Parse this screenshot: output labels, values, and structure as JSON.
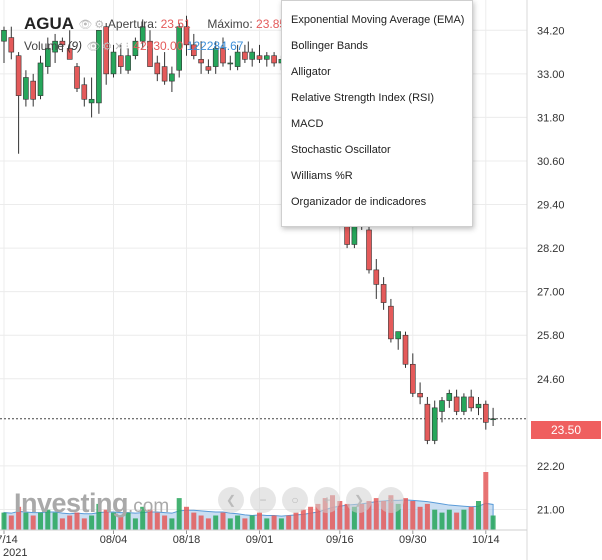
{
  "header": {
    "symbol": "AGUA",
    "open_label": "Apertura:",
    "open_value": "23.51",
    "max_label": "Máximo:",
    "max_value": "23.85",
    "volume_label": "Volume",
    "volume_period": "(9)",
    "volume_value_1": "42930.00",
    "volume_value_2": "122284.67",
    "volume_sep": "|"
  },
  "indicator_menu": {
    "items": [
      "Exponential Moving Average (EMA)",
      "Bollinger Bands",
      "Alligator",
      "Relative Strength Index (RSI)",
      "MACD",
      "Stochastic Oscillator",
      "Williams %R",
      "Organizador de indicadores"
    ]
  },
  "current_price_label": "23.50",
  "logo_text": "Investing",
  "logo_suffix": ".com",
  "colors": {
    "up": "#26a65b",
    "down": "#e45a5a",
    "volume_area": "#9fc3e8",
    "price_tag": "#ef5f5f",
    "grid": "#ececec"
  },
  "chart_data": {
    "type": "candlestick",
    "y_ticks": [
      "34.20",
      "33.00",
      "31.80",
      "30.60",
      "29.40",
      "28.20",
      "27.00",
      "25.80",
      "24.60",
      "22.20",
      "21.00"
    ],
    "ylim": [
      20.6,
      35.2
    ],
    "x_ticks": [
      {
        "label": "07/14",
        "index": 0
      },
      {
        "label": "08/04",
        "index": 15
      },
      {
        "label": "08/18",
        "index": 25
      },
      {
        "label": "09/01",
        "index": 35
      },
      {
        "label": "09/16",
        "index": 46
      },
      {
        "label": "09/30",
        "index": 56
      },
      {
        "label": "10/14",
        "index": 66
      }
    ],
    "x_sublabel": "2021",
    "current_price": 23.5,
    "candles": [
      {
        "o": 33.9,
        "h": 34.3,
        "l": 33.3,
        "c": 34.2
      },
      {
        "o": 34.0,
        "h": 34.3,
        "l": 33.4,
        "c": 33.6
      },
      {
        "o": 33.5,
        "h": 33.6,
        "l": 30.8,
        "c": 32.4
      },
      {
        "o": 32.3,
        "h": 33.1,
        "l": 32.1,
        "c": 32.9
      },
      {
        "o": 32.8,
        "h": 33.0,
        "l": 32.1,
        "c": 32.3
      },
      {
        "o": 32.4,
        "h": 33.5,
        "l": 32.3,
        "c": 33.3
      },
      {
        "o": 33.2,
        "h": 34.0,
        "l": 33.0,
        "c": 33.7
      },
      {
        "o": 33.6,
        "h": 34.1,
        "l": 33.3,
        "c": 33.9
      },
      {
        "o": 33.9,
        "h": 34.0,
        "l": 33.6,
        "c": 33.8
      },
      {
        "o": 33.7,
        "h": 34.2,
        "l": 33.4,
        "c": 33.4
      },
      {
        "o": 33.2,
        "h": 33.3,
        "l": 32.5,
        "c": 32.6
      },
      {
        "o": 32.7,
        "h": 32.9,
        "l": 32.1,
        "c": 32.3
      },
      {
        "o": 32.2,
        "h": 32.9,
        "l": 31.8,
        "c": 32.3
      },
      {
        "o": 32.2,
        "h": 34.2,
        "l": 31.9,
        "c": 34.2
      },
      {
        "o": 34.3,
        "h": 34.4,
        "l": 32.7,
        "c": 33.0
      },
      {
        "o": 33.0,
        "h": 33.8,
        "l": 32.9,
        "c": 33.6
      },
      {
        "o": 33.5,
        "h": 33.8,
        "l": 33.0,
        "c": 33.2
      },
      {
        "o": 33.1,
        "h": 33.7,
        "l": 33.0,
        "c": 33.5
      },
      {
        "o": 33.5,
        "h": 34.0,
        "l": 33.4,
        "c": 33.9
      },
      {
        "o": 33.9,
        "h": 34.5,
        "l": 33.7,
        "c": 34.3
      },
      {
        "o": 33.9,
        "h": 34.2,
        "l": 33.2,
        "c": 33.2
      },
      {
        "o": 33.3,
        "h": 33.5,
        "l": 32.8,
        "c": 33.0
      },
      {
        "o": 33.2,
        "h": 33.6,
        "l": 32.7,
        "c": 32.8
      },
      {
        "o": 32.8,
        "h": 33.2,
        "l": 32.5,
        "c": 33.0
      },
      {
        "o": 33.1,
        "h": 34.4,
        "l": 32.9,
        "c": 34.3
      },
      {
        "o": 34.3,
        "h": 34.6,
        "l": 33.5,
        "c": 33.8
      },
      {
        "o": 33.8,
        "h": 34.1,
        "l": 33.4,
        "c": 33.5
      },
      {
        "o": 33.4,
        "h": 33.9,
        "l": 33.0,
        "c": 33.3
      },
      {
        "o": 33.2,
        "h": 33.4,
        "l": 33.0,
        "c": 33.1
      },
      {
        "o": 33.2,
        "h": 33.9,
        "l": 33.0,
        "c": 33.7
      },
      {
        "o": 33.7,
        "h": 34.0,
        "l": 33.2,
        "c": 33.3
      },
      {
        "o": 33.3,
        "h": 33.5,
        "l": 33.1,
        "c": 33.3
      },
      {
        "o": 33.2,
        "h": 33.8,
        "l": 33.1,
        "c": 33.6
      },
      {
        "o": 33.6,
        "h": 33.8,
        "l": 33.3,
        "c": 33.4
      },
      {
        "o": 33.4,
        "h": 33.7,
        "l": 33.2,
        "c": 33.6
      },
      {
        "o": 33.5,
        "h": 33.8,
        "l": 33.3,
        "c": 33.4
      },
      {
        "o": 33.4,
        "h": 33.6,
        "l": 33.2,
        "c": 33.5
      },
      {
        "o": 33.5,
        "h": 33.6,
        "l": 33.2,
        "c": 33.3
      },
      {
        "o": 33.3,
        "h": 33.5,
        "l": 33.1,
        "c": 33.4
      },
      {
        "o": 33.4,
        "h": 33.6,
        "l": 33.2,
        "c": 33.3
      },
      {
        "o": 33.3,
        "h": 33.5,
        "l": 33.0,
        "c": 33.2
      },
      {
        "o": 33.2,
        "h": 33.4,
        "l": 32.9,
        "c": 33.0
      },
      {
        "o": 33.0,
        "h": 33.2,
        "l": 32.6,
        "c": 32.7
      },
      {
        "o": 32.7,
        "h": 32.9,
        "l": 32.3,
        "c": 32.4
      },
      {
        "o": 32.4,
        "h": 32.6,
        "l": 31.0,
        "c": 31.3
      },
      {
        "o": 31.3,
        "h": 31.5,
        "l": 29.9,
        "c": 30.2
      },
      {
        "o": 29.9,
        "h": 30.1,
        "l": 28.9,
        "c": 29.0
      },
      {
        "o": 29.0,
        "h": 29.4,
        "l": 28.2,
        "c": 28.3
      },
      {
        "o": 28.3,
        "h": 29.2,
        "l": 28.2,
        "c": 29.1
      },
      {
        "o": 29.1,
        "h": 29.4,
        "l": 28.7,
        "c": 28.8
      },
      {
        "o": 28.7,
        "h": 28.9,
        "l": 27.5,
        "c": 27.6
      },
      {
        "o": 27.6,
        "h": 27.9,
        "l": 26.8,
        "c": 27.2
      },
      {
        "o": 27.2,
        "h": 27.4,
        "l": 26.5,
        "c": 26.7
      },
      {
        "o": 26.6,
        "h": 26.8,
        "l": 25.6,
        "c": 25.7
      },
      {
        "o": 25.7,
        "h": 25.9,
        "l": 25.4,
        "c": 25.9
      },
      {
        "o": 25.8,
        "h": 25.9,
        "l": 24.9,
        "c": 25.0
      },
      {
        "o": 25.0,
        "h": 25.3,
        "l": 24.1,
        "c": 24.2
      },
      {
        "o": 24.2,
        "h": 24.5,
        "l": 23.9,
        "c": 24.1
      },
      {
        "o": 23.9,
        "h": 24.1,
        "l": 22.8,
        "c": 22.9
      },
      {
        "o": 22.9,
        "h": 24.0,
        "l": 22.8,
        "c": 23.8
      },
      {
        "o": 23.7,
        "h": 24.1,
        "l": 23.4,
        "c": 24.0
      },
      {
        "o": 24.0,
        "h": 24.3,
        "l": 23.8,
        "c": 24.2
      },
      {
        "o": 24.1,
        "h": 24.3,
        "l": 23.6,
        "c": 23.7
      },
      {
        "o": 23.7,
        "h": 24.2,
        "l": 23.6,
        "c": 24.1
      },
      {
        "o": 24.1,
        "h": 24.3,
        "l": 23.7,
        "c": 23.8
      },
      {
        "o": 23.8,
        "h": 24.1,
        "l": 23.6,
        "c": 23.9
      },
      {
        "o": 23.9,
        "h": 24.0,
        "l": 23.2,
        "c": 23.4
      },
      {
        "o": 23.5,
        "h": 23.8,
        "l": 23.3,
        "c": 23.5
      }
    ],
    "volume": [
      0.3,
      0.25,
      0.4,
      0.3,
      0.25,
      0.3,
      0.35,
      0.3,
      0.2,
      0.25,
      0.3,
      0.2,
      0.25,
      0.45,
      0.35,
      0.3,
      0.25,
      0.3,
      0.2,
      0.4,
      0.35,
      0.3,
      0.25,
      0.2,
      0.55,
      0.4,
      0.3,
      0.25,
      0.2,
      0.25,
      0.3,
      0.2,
      0.25,
      0.2,
      0.25,
      0.3,
      0.2,
      0.25,
      0.2,
      0.25,
      0.3,
      0.35,
      0.4,
      0.45,
      0.55,
      0.6,
      0.5,
      0.45,
      0.4,
      0.45,
      0.5,
      0.55,
      0.5,
      0.6,
      0.45,
      0.55,
      0.5,
      0.4,
      0.45,
      0.35,
      0.3,
      0.35,
      0.3,
      0.35,
      0.4,
      0.5,
      1.0,
      0.25
    ],
    "volume_ma": [
      0.3,
      0.29,
      0.32,
      0.31,
      0.3,
      0.3,
      0.31,
      0.31,
      0.29,
      0.28,
      0.29,
      0.28,
      0.28,
      0.3,
      0.31,
      0.31,
      0.3,
      0.3,
      0.29,
      0.3,
      0.31,
      0.31,
      0.3,
      0.29,
      0.33,
      0.34,
      0.34,
      0.33,
      0.32,
      0.31,
      0.31,
      0.29,
      0.28,
      0.26,
      0.25,
      0.26,
      0.25,
      0.25,
      0.24,
      0.25,
      0.26,
      0.27,
      0.29,
      0.31,
      0.35,
      0.39,
      0.41,
      0.43,
      0.44,
      0.45,
      0.47,
      0.49,
      0.5,
      0.51,
      0.51,
      0.52,
      0.51,
      0.5,
      0.49,
      0.47,
      0.45,
      0.43,
      0.42,
      0.41,
      0.4,
      0.41,
      0.46,
      0.44
    ]
  }
}
